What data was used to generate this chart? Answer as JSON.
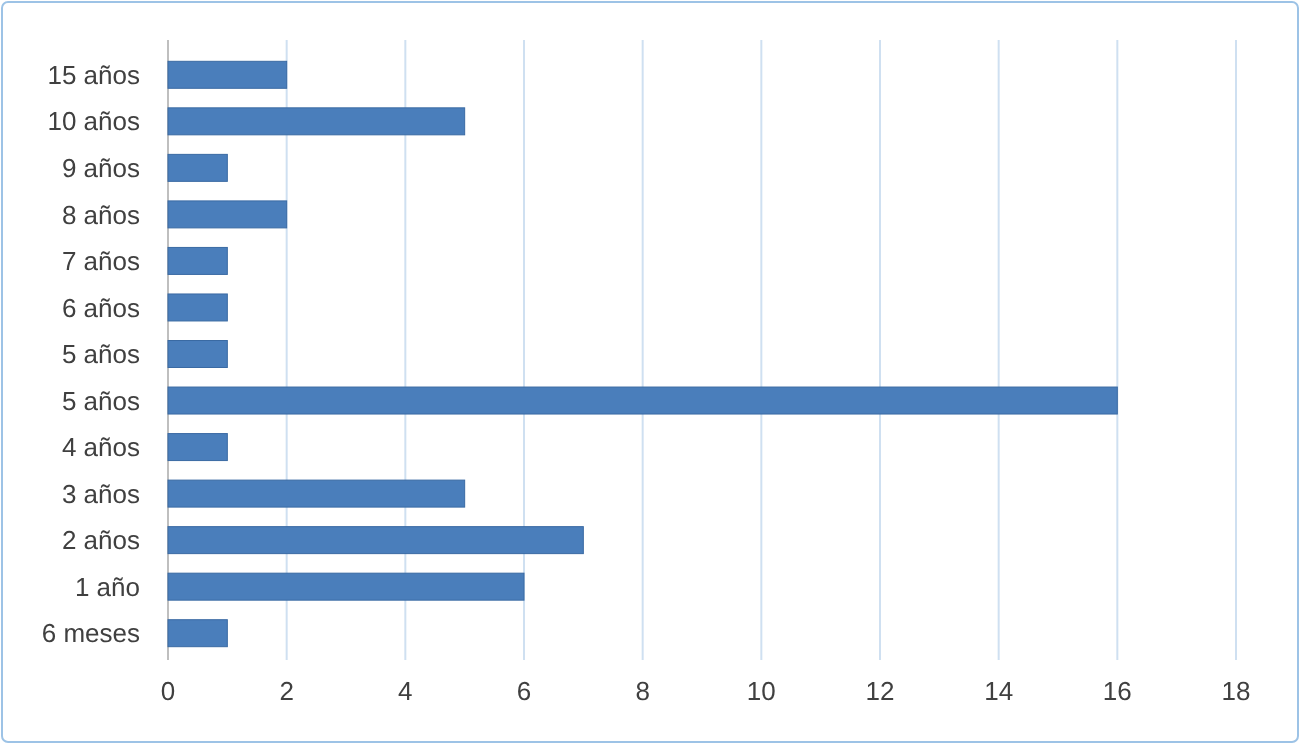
{
  "chart_data": {
    "type": "bar",
    "orientation": "horizontal",
    "categories": [
      "15 años",
      "10 años",
      "9 años",
      "8 años",
      "7 años",
      "6 años",
      "5 años ",
      "5 años",
      "4 años",
      "3 años",
      "2 años",
      "1 año",
      "6 meses"
    ],
    "values": [
      2,
      5,
      1,
      2,
      1,
      1,
      1,
      16,
      1,
      5,
      7,
      6,
      1
    ],
    "color": "#4a7ebb",
    "xlim": [
      0,
      18
    ],
    "xticks": [
      0,
      2,
      4,
      6,
      8,
      10,
      12,
      14,
      16,
      18
    ],
    "grid": "x"
  }
}
